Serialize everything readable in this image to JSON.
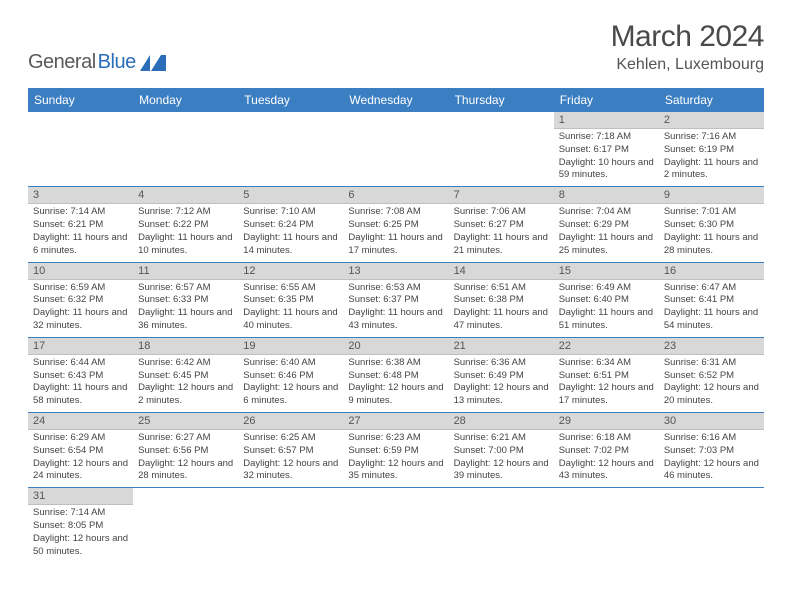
{
  "logo": {
    "word1": "General",
    "word2": "Blue"
  },
  "title": "March 2024",
  "location": "Kehlen, Luxembourg",
  "headers": [
    "Sunday",
    "Monday",
    "Tuesday",
    "Wednesday",
    "Thursday",
    "Friday",
    "Saturday"
  ],
  "colors": {
    "header_bg": "#3b7ec2",
    "daynum_bg": "#d8d8d8",
    "border": "#3b7ec2",
    "logo_blue": "#2a6db8"
  },
  "weeks": [
    [
      null,
      null,
      null,
      null,
      null,
      {
        "n": "1",
        "sr": "Sunrise: 7:18 AM",
        "ss": "Sunset: 6:17 PM",
        "dl": "Daylight: 10 hours and 59 minutes."
      },
      {
        "n": "2",
        "sr": "Sunrise: 7:16 AM",
        "ss": "Sunset: 6:19 PM",
        "dl": "Daylight: 11 hours and 2 minutes."
      }
    ],
    [
      {
        "n": "3",
        "sr": "Sunrise: 7:14 AM",
        "ss": "Sunset: 6:21 PM",
        "dl": "Daylight: 11 hours and 6 minutes."
      },
      {
        "n": "4",
        "sr": "Sunrise: 7:12 AM",
        "ss": "Sunset: 6:22 PM",
        "dl": "Daylight: 11 hours and 10 minutes."
      },
      {
        "n": "5",
        "sr": "Sunrise: 7:10 AM",
        "ss": "Sunset: 6:24 PM",
        "dl": "Daylight: 11 hours and 14 minutes."
      },
      {
        "n": "6",
        "sr": "Sunrise: 7:08 AM",
        "ss": "Sunset: 6:25 PM",
        "dl": "Daylight: 11 hours and 17 minutes."
      },
      {
        "n": "7",
        "sr": "Sunrise: 7:06 AM",
        "ss": "Sunset: 6:27 PM",
        "dl": "Daylight: 11 hours and 21 minutes."
      },
      {
        "n": "8",
        "sr": "Sunrise: 7:04 AM",
        "ss": "Sunset: 6:29 PM",
        "dl": "Daylight: 11 hours and 25 minutes."
      },
      {
        "n": "9",
        "sr": "Sunrise: 7:01 AM",
        "ss": "Sunset: 6:30 PM",
        "dl": "Daylight: 11 hours and 28 minutes."
      }
    ],
    [
      {
        "n": "10",
        "sr": "Sunrise: 6:59 AM",
        "ss": "Sunset: 6:32 PM",
        "dl": "Daylight: 11 hours and 32 minutes."
      },
      {
        "n": "11",
        "sr": "Sunrise: 6:57 AM",
        "ss": "Sunset: 6:33 PM",
        "dl": "Daylight: 11 hours and 36 minutes."
      },
      {
        "n": "12",
        "sr": "Sunrise: 6:55 AM",
        "ss": "Sunset: 6:35 PM",
        "dl": "Daylight: 11 hours and 40 minutes."
      },
      {
        "n": "13",
        "sr": "Sunrise: 6:53 AM",
        "ss": "Sunset: 6:37 PM",
        "dl": "Daylight: 11 hours and 43 minutes."
      },
      {
        "n": "14",
        "sr": "Sunrise: 6:51 AM",
        "ss": "Sunset: 6:38 PM",
        "dl": "Daylight: 11 hours and 47 minutes."
      },
      {
        "n": "15",
        "sr": "Sunrise: 6:49 AM",
        "ss": "Sunset: 6:40 PM",
        "dl": "Daylight: 11 hours and 51 minutes."
      },
      {
        "n": "16",
        "sr": "Sunrise: 6:47 AM",
        "ss": "Sunset: 6:41 PM",
        "dl": "Daylight: 11 hours and 54 minutes."
      }
    ],
    [
      {
        "n": "17",
        "sr": "Sunrise: 6:44 AM",
        "ss": "Sunset: 6:43 PM",
        "dl": "Daylight: 11 hours and 58 minutes."
      },
      {
        "n": "18",
        "sr": "Sunrise: 6:42 AM",
        "ss": "Sunset: 6:45 PM",
        "dl": "Daylight: 12 hours and 2 minutes."
      },
      {
        "n": "19",
        "sr": "Sunrise: 6:40 AM",
        "ss": "Sunset: 6:46 PM",
        "dl": "Daylight: 12 hours and 6 minutes."
      },
      {
        "n": "20",
        "sr": "Sunrise: 6:38 AM",
        "ss": "Sunset: 6:48 PM",
        "dl": "Daylight: 12 hours and 9 minutes."
      },
      {
        "n": "21",
        "sr": "Sunrise: 6:36 AM",
        "ss": "Sunset: 6:49 PM",
        "dl": "Daylight: 12 hours and 13 minutes."
      },
      {
        "n": "22",
        "sr": "Sunrise: 6:34 AM",
        "ss": "Sunset: 6:51 PM",
        "dl": "Daylight: 12 hours and 17 minutes."
      },
      {
        "n": "23",
        "sr": "Sunrise: 6:31 AM",
        "ss": "Sunset: 6:52 PM",
        "dl": "Daylight: 12 hours and 20 minutes."
      }
    ],
    [
      {
        "n": "24",
        "sr": "Sunrise: 6:29 AM",
        "ss": "Sunset: 6:54 PM",
        "dl": "Daylight: 12 hours and 24 minutes."
      },
      {
        "n": "25",
        "sr": "Sunrise: 6:27 AM",
        "ss": "Sunset: 6:56 PM",
        "dl": "Daylight: 12 hours and 28 minutes."
      },
      {
        "n": "26",
        "sr": "Sunrise: 6:25 AM",
        "ss": "Sunset: 6:57 PM",
        "dl": "Daylight: 12 hours and 32 minutes."
      },
      {
        "n": "27",
        "sr": "Sunrise: 6:23 AM",
        "ss": "Sunset: 6:59 PM",
        "dl": "Daylight: 12 hours and 35 minutes."
      },
      {
        "n": "28",
        "sr": "Sunrise: 6:21 AM",
        "ss": "Sunset: 7:00 PM",
        "dl": "Daylight: 12 hours and 39 minutes."
      },
      {
        "n": "29",
        "sr": "Sunrise: 6:18 AM",
        "ss": "Sunset: 7:02 PM",
        "dl": "Daylight: 12 hours and 43 minutes."
      },
      {
        "n": "30",
        "sr": "Sunrise: 6:16 AM",
        "ss": "Sunset: 7:03 PM",
        "dl": "Daylight: 12 hours and 46 minutes."
      }
    ],
    [
      {
        "n": "31",
        "sr": "Sunrise: 7:14 AM",
        "ss": "Sunset: 8:05 PM",
        "dl": "Daylight: 12 hours and 50 minutes."
      },
      null,
      null,
      null,
      null,
      null,
      null
    ]
  ]
}
